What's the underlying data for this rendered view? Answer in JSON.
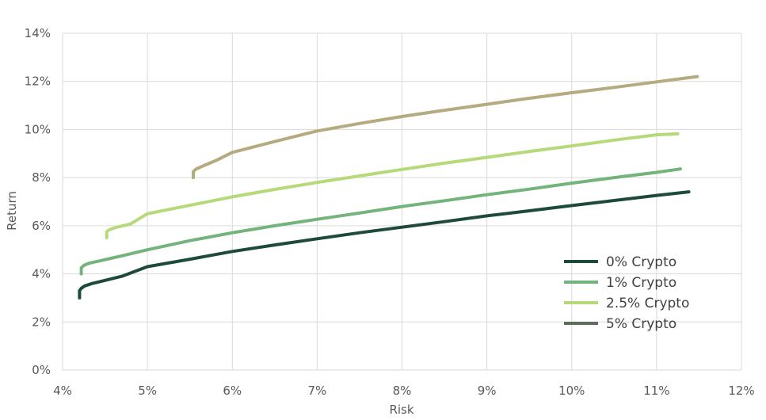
{
  "chart_data": {
    "type": "line",
    "title": "",
    "xlabel": "Risk",
    "ylabel": "Return",
    "xlim": [
      0.04,
      0.12
    ],
    "ylim": [
      0,
      0.14
    ],
    "xticks": [
      {
        "value": 0.04,
        "label": "4%"
      },
      {
        "value": 0.05,
        "label": "5%"
      },
      {
        "value": 0.06,
        "label": "6%"
      },
      {
        "value": 0.07,
        "label": "7%"
      },
      {
        "value": 0.08,
        "label": "8%"
      },
      {
        "value": 0.09,
        "label": "9%"
      },
      {
        "value": 0.1,
        "label": "10%"
      },
      {
        "value": 0.11,
        "label": "11%"
      },
      {
        "value": 0.12,
        "label": "12%"
      }
    ],
    "yticks": [
      {
        "value": 0.0,
        "label": "0%"
      },
      {
        "value": 0.02,
        "label": "2%"
      },
      {
        "value": 0.04,
        "label": "4%"
      },
      {
        "value": 0.06,
        "label": "6%"
      },
      {
        "value": 0.08,
        "label": "8%"
      },
      {
        "value": 0.1,
        "label": "10%"
      },
      {
        "value": 0.12,
        "label": "12%"
      },
      {
        "value": 0.14,
        "label": "14%"
      }
    ],
    "grid": true,
    "legend_position": "bottom-right",
    "series": [
      {
        "name": "0% Crypto",
        "color": "#1e4a3c",
        "points": [
          [
            0.042,
            0.03
          ],
          [
            0.042,
            0.033
          ],
          [
            0.0422,
            0.034
          ],
          [
            0.0426,
            0.035
          ],
          [
            0.0435,
            0.036
          ],
          [
            0.045,
            0.0373
          ],
          [
            0.047,
            0.039
          ],
          [
            0.05,
            0.043
          ],
          [
            0.055,
            0.0461
          ],
          [
            0.06,
            0.0493
          ],
          [
            0.065,
            0.052
          ],
          [
            0.07,
            0.0546
          ],
          [
            0.075,
            0.0571
          ],
          [
            0.08,
            0.0594
          ],
          [
            0.085,
            0.0617
          ],
          [
            0.09,
            0.0641
          ],
          [
            0.095,
            0.0662
          ],
          [
            0.1,
            0.0684
          ],
          [
            0.105,
            0.0705
          ],
          [
            0.11,
            0.0726
          ],
          [
            0.1138,
            0.0741
          ]
        ]
      },
      {
        "name": "1% Crypto",
        "color": "#72b47c",
        "points": [
          [
            0.0422,
            0.04
          ],
          [
            0.0422,
            0.0425
          ],
          [
            0.0425,
            0.0435
          ],
          [
            0.0432,
            0.0445
          ],
          [
            0.0445,
            0.0455
          ],
          [
            0.047,
            0.0475
          ],
          [
            0.05,
            0.05
          ],
          [
            0.055,
            0.0538
          ],
          [
            0.06,
            0.0571
          ],
          [
            0.065,
            0.06
          ],
          [
            0.07,
            0.0627
          ],
          [
            0.075,
            0.0653
          ],
          [
            0.08,
            0.068
          ],
          [
            0.085,
            0.0704
          ],
          [
            0.09,
            0.0729
          ],
          [
            0.095,
            0.0752
          ],
          [
            0.1,
            0.0777
          ],
          [
            0.105,
            0.08
          ],
          [
            0.11,
            0.0822
          ],
          [
            0.1128,
            0.0836
          ]
        ]
      },
      {
        "name": "2.5% Crypto",
        "color": "#b6d97a",
        "points": [
          [
            0.0452,
            0.055
          ],
          [
            0.0452,
            0.0575
          ],
          [
            0.0456,
            0.0585
          ],
          [
            0.0465,
            0.0595
          ],
          [
            0.048,
            0.0607
          ],
          [
            0.05,
            0.065
          ],
          [
            0.055,
            0.0685
          ],
          [
            0.06,
            0.072
          ],
          [
            0.065,
            0.0751
          ],
          [
            0.07,
            0.078
          ],
          [
            0.075,
            0.0807
          ],
          [
            0.08,
            0.0834
          ],
          [
            0.085,
            0.086
          ],
          [
            0.09,
            0.0884
          ],
          [
            0.095,
            0.0909
          ],
          [
            0.1,
            0.0932
          ],
          [
            0.105,
            0.0956
          ],
          [
            0.11,
            0.0978
          ],
          [
            0.1125,
            0.0982
          ]
        ]
      },
      {
        "name": "5% Crypto",
        "color": "#b5aa80",
        "points": [
          [
            0.0554,
            0.08
          ],
          [
            0.0554,
            0.0825
          ],
          [
            0.0557,
            0.0835
          ],
          [
            0.0565,
            0.0848
          ],
          [
            0.058,
            0.087
          ],
          [
            0.06,
            0.0905
          ],
          [
            0.065,
            0.095
          ],
          [
            0.07,
            0.0994
          ],
          [
            0.075,
            0.1025
          ],
          [
            0.08,
            0.1054
          ],
          [
            0.085,
            0.108
          ],
          [
            0.09,
            0.1105
          ],
          [
            0.095,
            0.113
          ],
          [
            0.1,
            0.1153
          ],
          [
            0.105,
            0.1175
          ],
          [
            0.11,
            0.1198
          ],
          [
            0.1148,
            0.122
          ]
        ]
      }
    ]
  }
}
